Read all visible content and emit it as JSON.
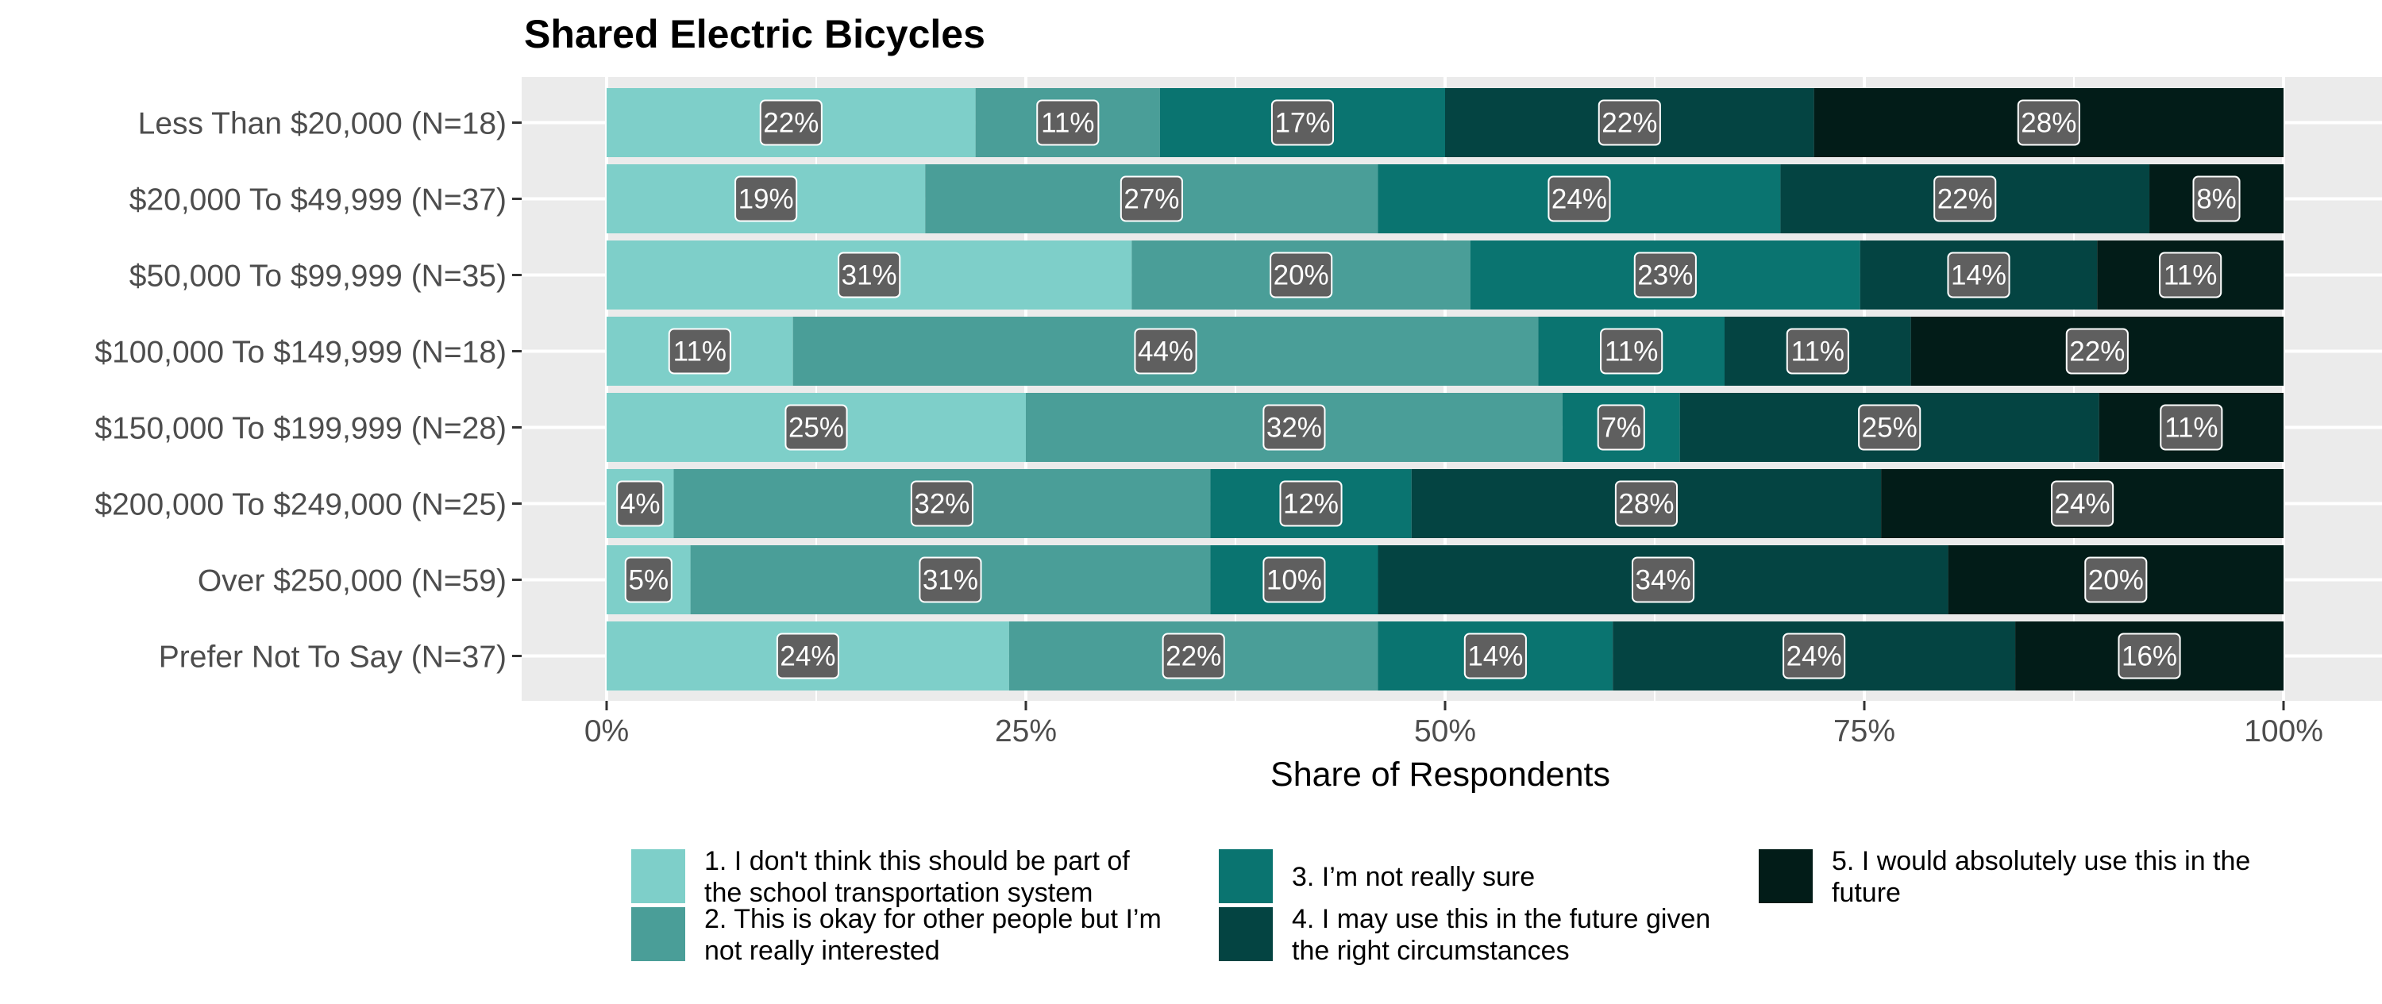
{
  "chart_data": {
    "type": "bar",
    "orientation": "horizontal",
    "stacked": true,
    "title": "Shared Electric Bicycles",
    "xlabel": "Share of Respondents",
    "ylabel": "",
    "xlim": [
      0,
      1
    ],
    "x_ticks": [
      0,
      0.25,
      0.5,
      0.75,
      1
    ],
    "x_tick_labels": [
      "0%",
      "25%",
      "50%",
      "75%",
      "100%"
    ],
    "grid": true,
    "legend_position": "bottom",
    "categories": [
      "Less Than $20,000 (N=18)",
      "$20,000 To $49,999 (N=37)",
      "$50,000 To $99,999 (N=35)",
      "$100,000 To $149,999 (N=18)",
      "$150,000 To $199,999 (N=28)",
      "$200,000 To $249,000 (N=25)",
      "Over $250,000 (N=59)",
      "Prefer Not To Say (N=37)"
    ],
    "series": [
      {
        "name": "1. I don't think this should be part of the school transportation system",
        "legend_lines": [
          "1. I don't think this should be part of",
          "the school transportation system"
        ],
        "color": "#7ecfc9",
        "values": [
          0.22,
          0.19,
          0.31,
          0.11,
          0.25,
          0.04,
          0.05,
          0.24
        ],
        "labels": [
          "22%",
          "19%",
          "31%",
          "11%",
          "25%",
          "4%",
          "5%",
          "24%"
        ]
      },
      {
        "name": "2. This is okay for other people but I’m not really interested",
        "legend_lines": [
          "2. This is okay for other people but I’m",
          "not really interested"
        ],
        "color": "#4a9e98",
        "values": [
          0.11,
          0.27,
          0.2,
          0.44,
          0.32,
          0.32,
          0.31,
          0.22
        ],
        "labels": [
          "11%",
          "27%",
          "20%",
          "44%",
          "32%",
          "32%",
          "31%",
          "22%"
        ]
      },
      {
        "name": "3. I’m not really sure",
        "legend_lines": [
          "3. I’m not really sure"
        ],
        "color": "#0a7470",
        "values": [
          0.17,
          0.24,
          0.23,
          0.11,
          0.07,
          0.12,
          0.1,
          0.14
        ],
        "labels": [
          "17%",
          "24%",
          "23%",
          "11%",
          "7%",
          "12%",
          "10%",
          "14%"
        ]
      },
      {
        "name": "4. I may use this in the future given the right circumstances",
        "legend_lines": [
          "4. I may use this in the future given",
          "the right circumstances"
        ],
        "color": "#044442",
        "values": [
          0.22,
          0.22,
          0.14,
          0.11,
          0.25,
          0.28,
          0.34,
          0.24
        ],
        "labels": [
          "22%",
          "22%",
          "14%",
          "11%",
          "25%",
          "28%",
          "34%",
          "24%"
        ]
      },
      {
        "name": "5. I would absolutely use this in the future",
        "legend_lines": [
          "5. I would absolutely use this in the",
          "future"
        ],
        "color": "#021c18",
        "values": [
          0.28,
          0.08,
          0.11,
          0.22,
          0.11,
          0.24,
          0.2,
          0.16
        ],
        "labels": [
          "28%",
          "8%",
          "11%",
          "22%",
          "11%",
          "24%",
          "20%",
          "16%"
        ]
      }
    ]
  }
}
